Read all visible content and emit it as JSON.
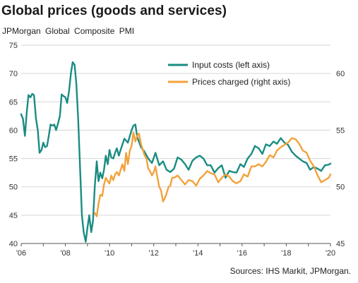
{
  "title": "Global prices (goods and services)",
  "subtitle": "JPMorgan  Global  Composite  PMI",
  "source": "Sources: IHS Markit, JPMorgan.",
  "colors": {
    "input": "#1a8c82",
    "prices": "#f2a23a",
    "grid": "#d6d6d6",
    "axis": "#555555"
  },
  "chart_data": {
    "type": "line",
    "x_ticks": [
      "'06",
      "'08",
      "'10",
      "'12",
      "'14",
      "'16",
      "'18",
      "'20"
    ],
    "x_tick_years": [
      2006,
      2008,
      2010,
      2012,
      2014,
      2016,
      2018,
      2020
    ],
    "left_axis": {
      "ylim": [
        40,
        75
      ],
      "ticks": [
        40,
        45,
        50,
        55,
        60,
        65,
        70,
        75
      ]
    },
    "right_axis": {
      "ylim": [
        45,
        62.5
      ],
      "ticks": [
        45,
        50,
        55,
        60
      ]
    },
    "grid": true,
    "legend_position": "top-right",
    "series": [
      {
        "name": "Input costs (left axis)",
        "axis": "left",
        "color": "#1a8c82",
        "x": [
          2006.0,
          2006.08,
          2006.17,
          2006.25,
          2006.33,
          2006.42,
          2006.5,
          2006.58,
          2006.67,
          2006.75,
          2006.83,
          2006.92,
          2007.0,
          2007.08,
          2007.17,
          2007.25,
          2007.33,
          2007.42,
          2007.5,
          2007.58,
          2007.67,
          2007.75,
          2007.83,
          2007.92,
          2008.0,
          2008.08,
          2008.17,
          2008.25,
          2008.33,
          2008.42,
          2008.5,
          2008.58,
          2008.67,
          2008.75,
          2008.83,
          2008.92,
          2009.0,
          2009.08,
          2009.17,
          2009.25,
          2009.33,
          2009.42,
          2009.5,
          2009.58,
          2009.67,
          2009.75,
          2009.83,
          2009.92,
          2010.0,
          2010.08,
          2010.17,
          2010.25,
          2010.33,
          2010.42,
          2010.5,
          2010.67,
          2010.83,
          2011.0,
          2011.08,
          2011.17,
          2011.25,
          2011.42,
          2011.58,
          2011.75,
          2011.92,
          2012.08,
          2012.25,
          2012.42,
          2012.58,
          2012.75,
          2012.92,
          2013.08,
          2013.25,
          2013.42,
          2013.58,
          2013.75,
          2013.92,
          2014.08,
          2014.25,
          2014.42,
          2014.58,
          2014.75,
          2014.92,
          2015.08,
          2015.25,
          2015.42,
          2015.58,
          2015.75,
          2015.92,
          2016.08,
          2016.25,
          2016.42,
          2016.58,
          2016.75,
          2016.92,
          2017.08,
          2017.25,
          2017.42,
          2017.58,
          2017.75,
          2017.92,
          2018.08,
          2018.25,
          2018.42,
          2018.58,
          2018.75,
          2018.92,
          2019.08,
          2019.25,
          2019.42,
          2019.58,
          2019.75,
          2019.92,
          2020.0
        ],
        "values": [
          62.8,
          62,
          59,
          63,
          66.2,
          65.8,
          66.4,
          66.2,
          62,
          60,
          56,
          56.5,
          57.8,
          57,
          57.2,
          59,
          61,
          60.8,
          61,
          60,
          61.2,
          62.5,
          66.3,
          66,
          65.8,
          64.8,
          67,
          70,
          72,
          71.5,
          68,
          62,
          53,
          45,
          42,
          40.3,
          42.8,
          45,
          42,
          44,
          50,
          54.5,
          51,
          52.5,
          51.5,
          53,
          55.5,
          54,
          56.5,
          55.2,
          55,
          56,
          56.8,
          55.5,
          56.5,
          58.5,
          57.8,
          60,
          60.8,
          61,
          58.8,
          57,
          56.2,
          55,
          54.2,
          56,
          53.8,
          54.5,
          53,
          52.6,
          53.2,
          55.2,
          54.8,
          54,
          53,
          54.6,
          55.2,
          55.5,
          55,
          53.8,
          53.8,
          52.5,
          53.3,
          53.8,
          51.6,
          52.8,
          52.6,
          52.5,
          54,
          53.5,
          55,
          55.8,
          57.2,
          56.8,
          55.8,
          57.5,
          57.2,
          58,
          57.6,
          58.6,
          57.8,
          57.4,
          56.2,
          55.5,
          55,
          54.5,
          54.2,
          53,
          53.5,
          53.2,
          52.8,
          53.8,
          53.9,
          54.1
        ]
      },
      {
        "name": "Prices charged (right axis)",
        "axis": "right",
        "color": "#f2a23a",
        "x": [
          2009.33,
          2009.42,
          2009.5,
          2009.58,
          2009.67,
          2009.75,
          2009.83,
          2009.92,
          2010.0,
          2010.08,
          2010.17,
          2010.25,
          2010.33,
          2010.42,
          2010.5,
          2010.58,
          2010.67,
          2010.75,
          2010.83,
          2010.92,
          2011.0,
          2011.08,
          2011.17,
          2011.25,
          2011.33,
          2011.42,
          2011.5,
          2011.58,
          2011.67,
          2011.75,
          2011.83,
          2011.92,
          2012.0,
          2012.08,
          2012.17,
          2012.25,
          2012.33,
          2012.42,
          2012.5,
          2012.58,
          2012.67,
          2012.75,
          2012.83,
          2012.92,
          2013.08,
          2013.25,
          2013.42,
          2013.58,
          2013.75,
          2013.92,
          2014.08,
          2014.25,
          2014.42,
          2014.58,
          2014.75,
          2014.92,
          2015.08,
          2015.25,
          2015.42,
          2015.58,
          2015.75,
          2015.92,
          2016.08,
          2016.25,
          2016.42,
          2016.58,
          2016.75,
          2016.92,
          2017.08,
          2017.25,
          2017.42,
          2017.58,
          2017.75,
          2017.92,
          2018.08,
          2018.25,
          2018.42,
          2018.58,
          2018.75,
          2018.92,
          2019.08,
          2019.25,
          2019.42,
          2019.58,
          2019.75,
          2019.92,
          2020.0
        ],
        "values": [
          47.7,
          47.4,
          48.5,
          49.3,
          49.2,
          50.2,
          50.8,
          50.5,
          50.3,
          51,
          50.6,
          51.1,
          51.3,
          51,
          51.5,
          52,
          51.4,
          53,
          52,
          53.2,
          53.6,
          54.8,
          54,
          54.5,
          54.7,
          53.8,
          53.3,
          52.8,
          52.5,
          51.6,
          51.4,
          51,
          51.3,
          51.8,
          50.8,
          50,
          49.7,
          48.7,
          49,
          49.4,
          50,
          50.1,
          50.8,
          50.8,
          51,
          50.6,
          50.2,
          50.6,
          50.5,
          50.1,
          50.7,
          51,
          51.4,
          51.2,
          51.1,
          50.4,
          50.8,
          51.1,
          50.9,
          50.5,
          50.3,
          50.5,
          51.1,
          50.9,
          51.8,
          51.8,
          52,
          51.8,
          52.2,
          52.8,
          52.6,
          53.2,
          53.5,
          53.7,
          53.9,
          54.3,
          54.2,
          53.8,
          53.2,
          53,
          52.3,
          51.8,
          51,
          50.4,
          50.6,
          50.8,
          51.1
        ]
      }
    ]
  }
}
